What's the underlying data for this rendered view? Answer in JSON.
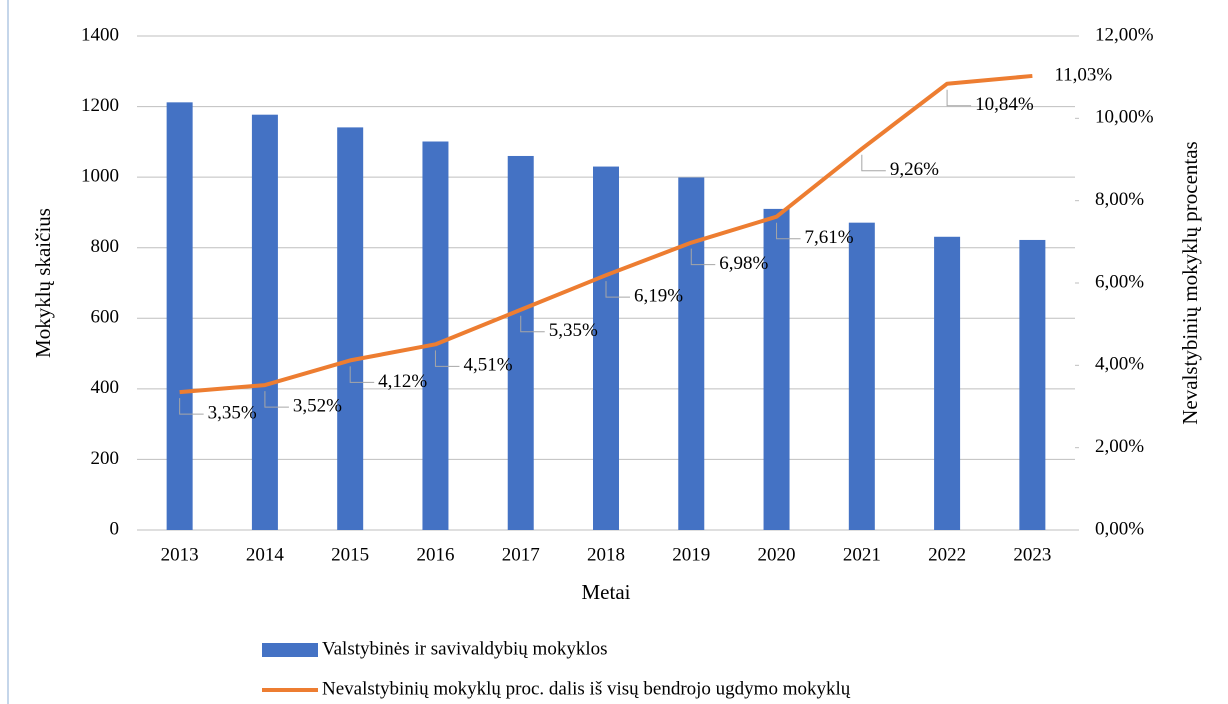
{
  "chart_data": {
    "type": "bar_line",
    "categories": [
      "2013",
      "2014",
      "2015",
      "2016",
      "2017",
      "2018",
      "2019",
      "2020",
      "2021",
      "2022",
      "2023"
    ],
    "series": [
      {
        "name": "Valstybinės ir savivaldybių mokyklos",
        "type": "bar",
        "color": "#4472c4",
        "values": [
          1212,
          1177,
          1141,
          1101,
          1060,
          1030,
          999,
          910,
          871,
          831,
          822
        ]
      },
      {
        "name": "Nevalstybinių mokyklų proc. dalis iš visų bendrojo ugdymo mokyklų",
        "type": "line",
        "color": "#ed7d31",
        "axis": "y2",
        "values": [
          3.35,
          3.52,
          4.12,
          4.51,
          5.35,
          6.19,
          6.98,
          7.61,
          9.26,
          10.84,
          11.03
        ],
        "value_labels": [
          "3,35%",
          "3,52%",
          "4,12%",
          "4,51%",
          "5,35%",
          "6,19%",
          "6,98%",
          "7,61%",
          "9,26%",
          "10,84%",
          "11,03%"
        ]
      }
    ],
    "x_label": "Metai",
    "y_label": "Mokyklų skaičius",
    "y2_label": "Nevalstybinių mokyklų procentas",
    "ylim": [
      0,
      1400
    ],
    "yticks": [
      0,
      200,
      400,
      600,
      800,
      1000,
      1200,
      1400
    ],
    "y2lim": [
      0,
      12
    ],
    "y2ticks": [
      {
        "value": 0,
        "label": "0,00%"
      },
      {
        "value": 2,
        "label": "2,00%"
      },
      {
        "value": 4,
        "label": "4,00%"
      },
      {
        "value": 6,
        "label": "6,00%"
      },
      {
        "value": 8,
        "label": "8,00%"
      },
      {
        "value": 10,
        "label": "10,00%"
      },
      {
        "value": 12,
        "label": "12,00%"
      }
    ],
    "grid": true,
    "legend": "bottom"
  }
}
